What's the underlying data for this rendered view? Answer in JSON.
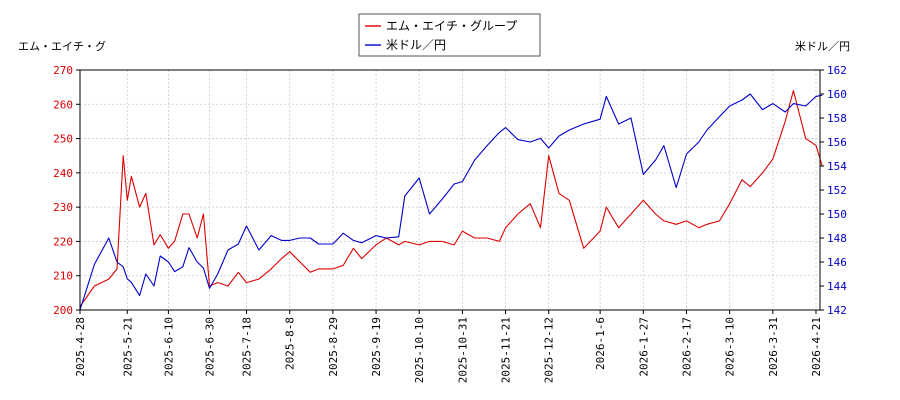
{
  "chart_data": {
    "type": "line",
    "left_axis_label": "エム・エイチ・グ",
    "right_axis_label": "米ドル／円",
    "legend": {
      "placement": "top-center"
    },
    "grid": true,
    "x_ticks": [
      "2025-4-28",
      "2025-5-21",
      "2025-6-10",
      "2025-6-30",
      "2025-7-18",
      "2025-8-8",
      "2025-8-29",
      "2025-9-19",
      "2025-10-10",
      "2025-10-31",
      "2025-11-21",
      "2025-12-12",
      "2026-1-6",
      "2026-1-27",
      "2026-2-17",
      "2026-3-10",
      "2026-3-31",
      "2026-4-21"
    ],
    "ylim_left": [
      200,
      270
    ],
    "yticks_left": [
      "200",
      "210",
      "220",
      "230",
      "240",
      "250",
      "260",
      "270"
    ],
    "ylim_right": [
      142,
      162
    ],
    "yticks_right": [
      "142",
      "144",
      "146",
      "148",
      "150",
      "152",
      "154",
      "156",
      "158",
      "160",
      "162"
    ],
    "series": [
      {
        "name": "エム・エイチ・グループ",
        "axis": "left",
        "color": "#dd0000",
        "x": [
          "2025-4-28",
          "2025-5-5",
          "2025-5-12",
          "2025-5-16",
          "2025-5-19",
          "2025-5-21",
          "2025-5-23",
          "2025-5-27",
          "2025-5-30",
          "2025-6-3",
          "2025-6-6",
          "2025-6-10",
          "2025-6-13",
          "2025-6-17",
          "2025-6-20",
          "2025-6-24",
          "2025-6-27",
          "2025-6-30",
          "2025-7-4",
          "2025-7-9",
          "2025-7-14",
          "2025-7-18",
          "2025-7-24",
          "2025-7-30",
          "2025-8-4",
          "2025-8-8",
          "2025-8-13",
          "2025-8-18",
          "2025-8-22",
          "2025-8-29",
          "2025-9-3",
          "2025-9-8",
          "2025-9-12",
          "2025-9-19",
          "2025-9-24",
          "2025-9-30",
          "2025-10-3",
          "2025-10-10",
          "2025-10-15",
          "2025-10-21",
          "2025-10-27",
          "2025-10-31",
          "2025-11-6",
          "2025-11-12",
          "2025-11-18",
          "2025-11-21",
          "2025-11-27",
          "2025-12-3",
          "2025-12-8",
          "2025-12-12",
          "2025-12-17",
          "2025-12-22",
          "2025-12-29",
          "2026-1-6",
          "2026-1-9",
          "2026-1-15",
          "2026-1-21",
          "2026-1-27",
          "2026-2-2",
          "2026-2-6",
          "2026-2-12",
          "2026-2-17",
          "2026-2-23",
          "2026-2-27",
          "2026-3-5",
          "2026-3-10",
          "2026-3-16",
          "2026-3-20",
          "2026-3-26",
          "2026-3-31",
          "2026-4-6",
          "2026-4-10",
          "2026-4-16",
          "2026-4-21",
          "2026-4-24"
        ],
        "values": [
          201,
          207,
          209,
          212,
          245,
          232,
          239,
          230,
          234,
          219,
          222,
          218,
          220,
          228,
          228,
          221,
          228,
          207,
          208,
          207,
          211,
          208,
          209,
          212,
          215,
          217,
          214,
          211,
          212,
          212,
          213,
          218,
          215,
          219,
          221,
          219,
          220,
          219,
          220,
          220,
          219,
          223,
          221,
          221,
          220,
          224,
          228,
          231,
          224,
          245,
          234,
          232,
          218,
          223,
          230,
          224,
          228,
          232,
          228,
          226,
          225,
          226,
          224,
          225,
          226,
          231,
          238,
          236,
          240,
          244,
          255,
          264,
          250,
          248,
          242
        ]
      },
      {
        "name": "米ドル／円",
        "axis": "right",
        "color": "#0000cc",
        "x": [
          "2025-4-28",
          "2025-5-5",
          "2025-5-12",
          "2025-5-16",
          "2025-5-19",
          "2025-5-21",
          "2025-5-23",
          "2025-5-27",
          "2025-5-30",
          "2025-6-3",
          "2025-6-6",
          "2025-6-10",
          "2025-6-13",
          "2025-6-17",
          "2025-6-20",
          "2025-6-24",
          "2025-6-27",
          "2025-6-30",
          "2025-7-4",
          "2025-7-9",
          "2025-7-14",
          "2025-7-18",
          "2025-7-24",
          "2025-7-30",
          "2025-8-4",
          "2025-8-8",
          "2025-8-13",
          "2025-8-18",
          "2025-8-22",
          "2025-8-29",
          "2025-9-3",
          "2025-9-8",
          "2025-9-12",
          "2025-9-19",
          "2025-9-24",
          "2025-9-30",
          "2025-10-3",
          "2025-10-10",
          "2025-10-15",
          "2025-10-21",
          "2025-10-27",
          "2025-10-31",
          "2025-11-6",
          "2025-11-12",
          "2025-11-18",
          "2025-11-21",
          "2025-11-27",
          "2025-12-3",
          "2025-12-8",
          "2025-12-12",
          "2025-12-17",
          "2025-12-22",
          "2025-12-29",
          "2026-1-6",
          "2026-1-9",
          "2026-1-15",
          "2026-1-21",
          "2026-1-27",
          "2026-2-2",
          "2026-2-6",
          "2026-2-12",
          "2026-2-17",
          "2026-2-23",
          "2026-2-27",
          "2026-3-5",
          "2026-3-10",
          "2026-3-16",
          "2026-3-20",
          "2026-3-26",
          "2026-3-31",
          "2026-4-6",
          "2026-4-10",
          "2026-4-16",
          "2026-4-21",
          "2026-4-24"
        ],
        "values": [
          142.0,
          145.8,
          148.0,
          146.0,
          145.6,
          144.6,
          144.3,
          143.2,
          145.0,
          144.0,
          146.5,
          146.0,
          145.2,
          145.6,
          147.2,
          146.0,
          145.5,
          143.8,
          145.0,
          147.0,
          147.5,
          149.0,
          147.0,
          148.2,
          147.8,
          147.8,
          148.0,
          148.0,
          147.5,
          147.5,
          148.4,
          147.8,
          147.6,
          148.2,
          148.0,
          148.1,
          151.5,
          153.0,
          150.0,
          151.2,
          152.5,
          152.7,
          154.5,
          155.7,
          156.8,
          157.2,
          156.2,
          156.0,
          156.3,
          155.5,
          156.5,
          157.0,
          157.5,
          157.9,
          159.8,
          157.5,
          158.0,
          153.3,
          154.5,
          155.7,
          152.2,
          155.0,
          156.0,
          157.0,
          158.1,
          159.0,
          159.5,
          160.0,
          158.7,
          159.2,
          158.5,
          159.2,
          159.0,
          159.8,
          159.9
        ]
      }
    ]
  }
}
